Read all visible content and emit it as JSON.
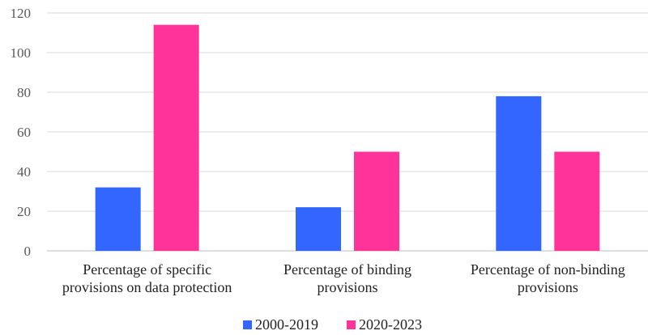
{
  "chart_data": {
    "type": "bar",
    "categories": [
      [
        "Percentage of specific",
        "provisions on data protection"
      ],
      [
        "Percentage of binding",
        "provisions"
      ],
      [
        "Percentage of non-binding",
        "provisions"
      ]
    ],
    "series": [
      {
        "name": "2000-2019",
        "color": "#3366ff",
        "values": [
          32,
          22,
          78
        ]
      },
      {
        "name": "2020-2023",
        "color": "#ff3399",
        "values": [
          114,
          50,
          50
        ]
      }
    ],
    "ylim": [
      0,
      120
    ],
    "yticks": [
      "0",
      "20",
      "40",
      "60",
      "80",
      "100",
      "120"
    ],
    "grid": true,
    "legend_position": "bottom"
  }
}
